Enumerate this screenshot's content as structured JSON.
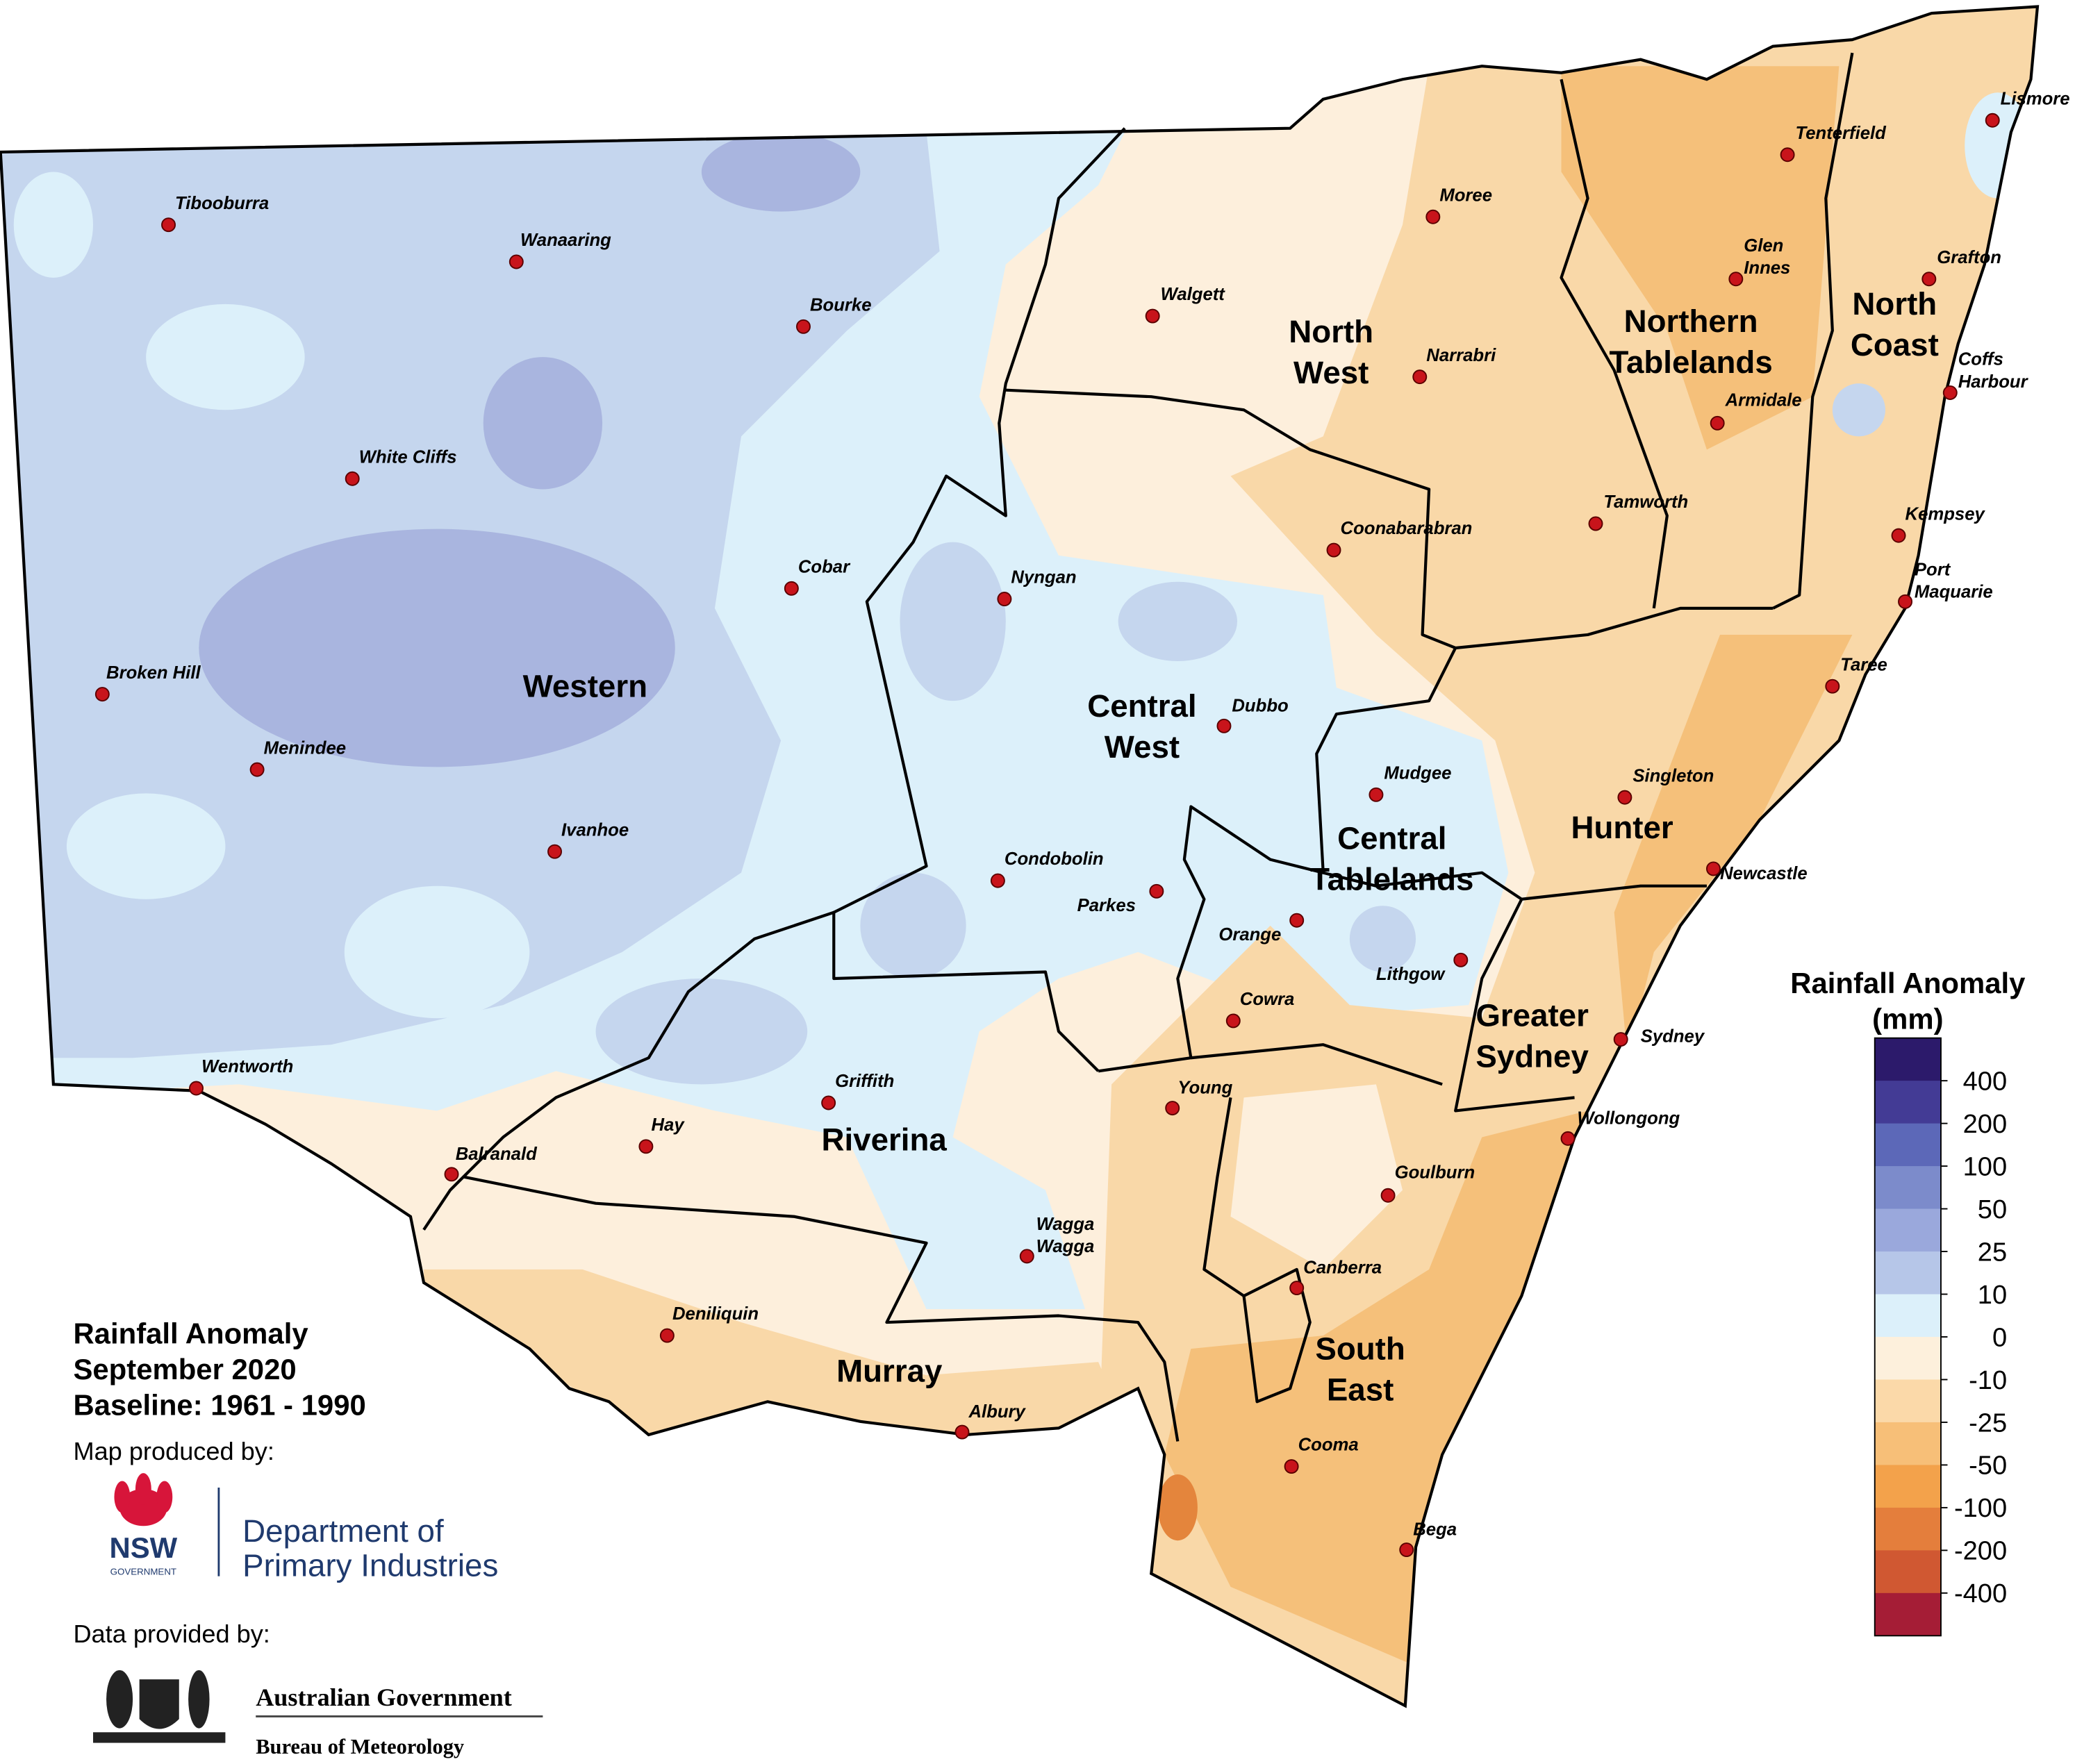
{
  "title_lines": [
    "Rainfall Anomaly",
    "September 2020",
    "Baseline: 1961 - 1990"
  ],
  "produced_by": "Map produced by:",
  "dpi": {
    "logo": "NSW",
    "sub": "GOVERNMENT",
    "name_lines": [
      "Department of",
      "Primary Industries"
    ]
  },
  "data_by": "Data provided by:",
  "bom": {
    "line1": "Australian Government",
    "line2": "Bureau of Meteorology"
  },
  "legend": {
    "title_lines": [
      "Rainfall Anomaly",
      "(mm)"
    ],
    "ticks": [
      400,
      200,
      100,
      50,
      25,
      10,
      0,
      -10,
      -25,
      -50,
      -100,
      -200,
      -400
    ],
    "colors": [
      "#2c1a6b",
      "#433b95",
      "#5c68b8",
      "#7c8bcb",
      "#9aa8dc",
      "#b6c6e8",
      "#dcf0fa",
      "#fdf0dc",
      "#fbd9a9",
      "#f7bf78",
      "#f3a24b",
      "#e47e3c",
      "#d05832",
      "#a51d36"
    ]
  },
  "regions": [
    {
      "lines": [
        "Western"
      ]
    },
    {
      "lines": [
        "North",
        "West"
      ]
    },
    {
      "lines": [
        "Northern",
        "Tablelands"
      ]
    },
    {
      "lines": [
        "North",
        "Coast"
      ]
    },
    {
      "lines": [
        "Central",
        "West"
      ]
    },
    {
      "lines": [
        "Central",
        "Tablelands"
      ]
    },
    {
      "lines": [
        "Hunter"
      ]
    },
    {
      "lines": [
        "Greater",
        "Sydney"
      ]
    },
    {
      "lines": [
        "Riverina"
      ]
    },
    {
      "lines": [
        "Murray"
      ]
    },
    {
      "lines": [
        "South",
        "East"
      ]
    }
  ],
  "towns": [
    {
      "lines": [
        "Tibooburra"
      ]
    },
    {
      "lines": [
        "Wanaaring"
      ]
    },
    {
      "lines": [
        "Bourke"
      ]
    },
    {
      "lines": [
        "White Cliffs"
      ]
    },
    {
      "lines": [
        "Cobar"
      ]
    },
    {
      "lines": [
        "Broken Hill"
      ]
    },
    {
      "lines": [
        "Menindee"
      ]
    },
    {
      "lines": [
        "Ivanhoe"
      ]
    },
    {
      "lines": [
        "Wentworth"
      ]
    },
    {
      "lines": [
        "Balranald"
      ]
    },
    {
      "lines": [
        "Hay"
      ]
    },
    {
      "lines": [
        "Griffith"
      ]
    },
    {
      "lines": [
        "Wagga",
        "Wagga"
      ]
    },
    {
      "lines": [
        "Deniliquin"
      ]
    },
    {
      "lines": [
        "Albury"
      ]
    },
    {
      "lines": [
        "Nyngan"
      ]
    },
    {
      "lines": [
        "Condobolin"
      ]
    },
    {
      "lines": [
        "Parkes"
      ]
    },
    {
      "lines": [
        "Dubbo"
      ]
    },
    {
      "lines": [
        "Orange"
      ]
    },
    {
      "lines": [
        "Cowra"
      ]
    },
    {
      "lines": [
        "Young"
      ]
    },
    {
      "lines": [
        "Mudgee"
      ]
    },
    {
      "lines": [
        "Lithgow"
      ]
    },
    {
      "lines": [
        "Canberra"
      ]
    },
    {
      "lines": [
        "Goulburn"
      ]
    },
    {
      "lines": [
        "Cooma"
      ]
    },
    {
      "lines": [
        "Bega"
      ]
    },
    {
      "lines": [
        "Sydney"
      ]
    },
    {
      "lines": [
        "Wollongong"
      ]
    },
    {
      "lines": [
        "Newcastle"
      ]
    },
    {
      "lines": [
        "Singleton"
      ]
    },
    {
      "lines": [
        "Taree"
      ]
    },
    {
      "lines": [
        "Port",
        "Maquarie"
      ]
    },
    {
      "lines": [
        "Kempsey"
      ]
    },
    {
      "lines": [
        "Coffs",
        "Harbour"
      ]
    },
    {
      "lines": [
        "Grafton"
      ]
    },
    {
      "lines": [
        "Lismore"
      ]
    },
    {
      "lines": [
        "Tenterfield"
      ]
    },
    {
      "lines": [
        "Glen",
        "Innes"
      ]
    },
    {
      "lines": [
        "Armidale"
      ]
    },
    {
      "lines": [
        "Tamworth"
      ]
    },
    {
      "lines": [
        "Narrabri"
      ]
    },
    {
      "lines": [
        "Moree"
      ]
    },
    {
      "lines": [
        "Walgett"
      ]
    },
    {
      "lines": [
        "Coonabarabran"
      ]
    }
  ]
}
